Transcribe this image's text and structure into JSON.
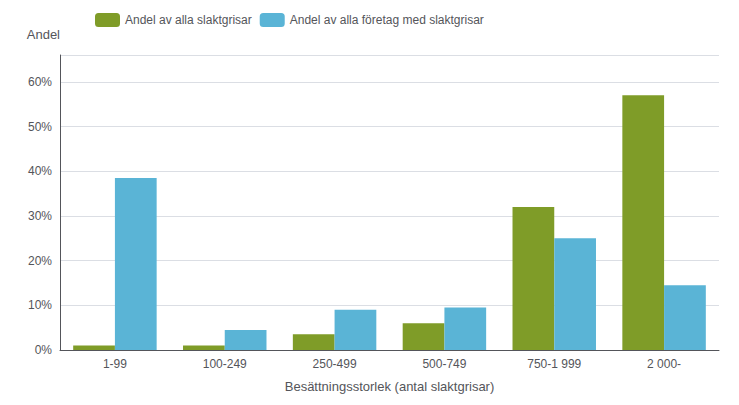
{
  "chart_data": {
    "type": "bar",
    "xlabel": "Besättningsstorlek (antal slaktgrisar)",
    "ylabel": "Andel",
    "categories": [
      "1-99",
      "100-249",
      "250-499",
      "500-749",
      "750-1 999",
      "2 000-"
    ],
    "series": [
      {
        "name": "Andel av alla slaktgrisar",
        "color": "#7f9c28",
        "values": [
          1.0,
          1.0,
          3.5,
          6.0,
          32.0,
          57.0
        ]
      },
      {
        "name": "Andel av alla företag med slaktgrisar",
        "color": "#5ab4d6",
        "values": [
          38.5,
          4.5,
          9.0,
          9.5,
          25.0,
          14.5
        ]
      }
    ],
    "ylim": [
      0,
      66
    ],
    "yticks": [
      {
        "value": 0,
        "label": "0%"
      },
      {
        "value": 10,
        "label": "10%"
      },
      {
        "value": 20,
        "label": "20%"
      },
      {
        "value": 30,
        "label": "30%"
      },
      {
        "value": 40,
        "label": "40%"
      },
      {
        "value": 50,
        "label": "50%"
      },
      {
        "value": 60,
        "label": "60%"
      }
    ],
    "grid": true,
    "legend": "upper left"
  }
}
